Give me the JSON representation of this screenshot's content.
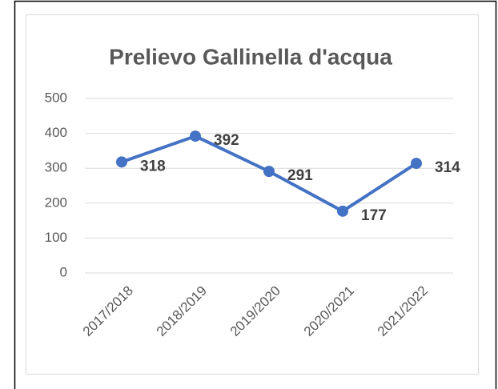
{
  "chart_data": {
    "type": "line",
    "title": "Prelievo Gallinella d'acqua",
    "categories": [
      "2017/2018",
      "2018/2019",
      "2019/2020",
      "2020/2021",
      "2021/2022"
    ],
    "values": [
      318,
      392,
      291,
      177,
      314
    ],
    "color": "#4472c4",
    "ylim": [
      0,
      500
    ],
    "yticks": [
      0,
      100,
      200,
      300,
      400,
      500
    ],
    "grid": true
  }
}
